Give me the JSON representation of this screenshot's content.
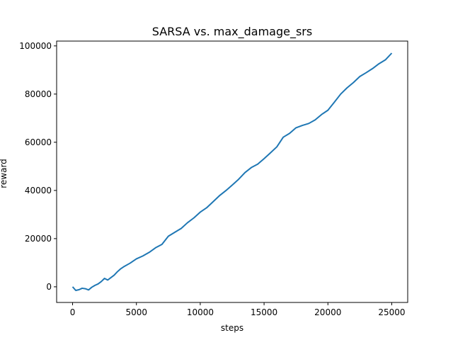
{
  "chart_data": {
    "type": "line",
    "title": "SARSA vs. max_damage_srs",
    "xlabel": "steps",
    "ylabel": "reward",
    "xlim": [
      -1250,
      26250
    ],
    "ylim": [
      -6500,
      102000
    ],
    "xticks": [
      0,
      5000,
      10000,
      15000,
      20000,
      25000
    ],
    "yticks": [
      0,
      20000,
      40000,
      60000,
      80000,
      100000
    ],
    "xtick_labels": [
      "0",
      "5000",
      "10000",
      "15000",
      "20000",
      "25000"
    ],
    "ytick_labels": [
      "0",
      "20000",
      "40000",
      "60000",
      "80000",
      "100000"
    ],
    "grid": false,
    "legend": null,
    "series": [
      {
        "color": "#1f77b4",
        "x": [
          0,
          250,
          500,
          750,
          1000,
          1250,
          1500,
          1750,
          2000,
          2250,
          2500,
          2750,
          3000,
          3250,
          3500,
          3750,
          4000,
          4500,
          5000,
          5500,
          6000,
          6500,
          7000,
          7500,
          8000,
          8500,
          9000,
          9500,
          10000,
          10500,
          11000,
          11500,
          12000,
          12500,
          13000,
          13500,
          14000,
          14500,
          15000,
          15500,
          16000,
          16500,
          17000,
          17500,
          18000,
          18500,
          19000,
          19500,
          20000,
          20500,
          21000,
          21500,
          22000,
          22500,
          23000,
          23500,
          24000,
          24500,
          25000
        ],
        "values": [
          0,
          -1500,
          -1200,
          -600,
          -800,
          -1300,
          -200,
          600,
          1200,
          2200,
          3500,
          2800,
          3800,
          4800,
          6200,
          7400,
          8300,
          9800,
          11600,
          12800,
          14300,
          16200,
          17600,
          21000,
          22600,
          24200,
          26600,
          28600,
          31000,
          32800,
          35300,
          37800,
          39900,
          42200,
          44600,
          47400,
          49500,
          50900,
          53200,
          55600,
          58100,
          62100,
          63700,
          66000,
          67000,
          67800,
          69300,
          71500,
          73300,
          76600,
          80000,
          82600,
          84800,
          87300,
          88900,
          90600,
          92600,
          94200,
          97000
        ]
      }
    ]
  }
}
